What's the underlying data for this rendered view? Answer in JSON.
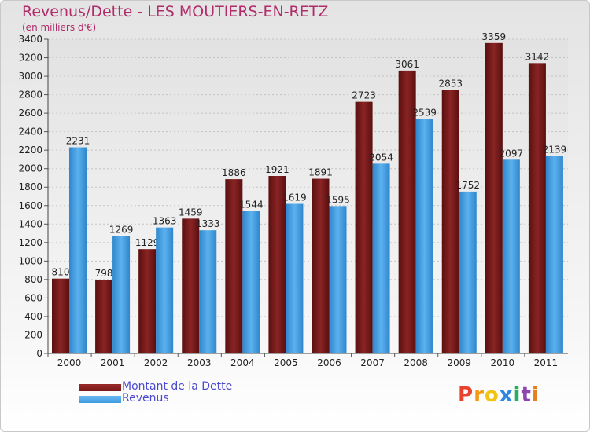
{
  "title": "Revenus/Dette - LES MOUTIERS-EN-RETZ",
  "subtitle": "(en milliers d'€)",
  "colors": {
    "title": "#b02c6a",
    "dette": "#7a1a1a",
    "revenus": "#3d9be0",
    "legend_text": "#4a4ad0"
  },
  "legend": [
    {
      "label": "Montant de la Dette",
      "color": "#7a1a1a"
    },
    {
      "label": "Revenus",
      "color": "#3d9be0"
    }
  ],
  "logo": {
    "text": "Proxiti",
    "letters": [
      "P",
      "r",
      "o",
      "x",
      "i",
      "t",
      "i"
    ],
    "colors": [
      "#e8432d",
      "#f39c12",
      "#f1c40f",
      "#2e86de",
      "#27ae60",
      "#8e44ad",
      "#e67e22"
    ]
  },
  "chart_data": {
    "type": "bar",
    "title": "Revenus/Dette - LES MOUTIERS-EN-RETZ",
    "subtitle": "(en milliers d'€)",
    "categories": [
      "2000",
      "2001",
      "2002",
      "2003",
      "2004",
      "2005",
      "2006",
      "2007",
      "2008",
      "2009",
      "2010",
      "2011"
    ],
    "series": [
      {
        "name": "Montant de la Dette",
        "values": [
          810,
          798,
          1129,
          1459,
          1886,
          1921,
          1891,
          2723,
          3061,
          2853,
          3359,
          3142
        ],
        "labels": [
          "810",
          "798",
          "1129",
          "1459",
          "1886",
          "1921",
          "1891",
          "2723",
          "3061",
          "2853",
          "3359",
          "3142"
        ]
      },
      {
        "name": "Revenus",
        "values": [
          2231,
          1269,
          1363,
          1333,
          1544,
          1619,
          1595,
          2054,
          2539,
          1752,
          2097,
          2139
        ],
        "labels": [
          "2231",
          "1269",
          "1363",
          "1333",
          "1544",
          "1619",
          "1595",
          "2054",
          "2539",
          "1752",
          "2097",
          "2139"
        ]
      }
    ],
    "ylim": [
      0,
      3400
    ],
    "yticks": [
      "0",
      "200",
      "400",
      "600",
      "800",
      "1000",
      "1200",
      "1400",
      "1600",
      "1800",
      "2000",
      "2200",
      "2400",
      "2600",
      "2800",
      "3000",
      "3200",
      "3400"
    ],
    "grid": true,
    "legend_position": "bottom-left"
  }
}
